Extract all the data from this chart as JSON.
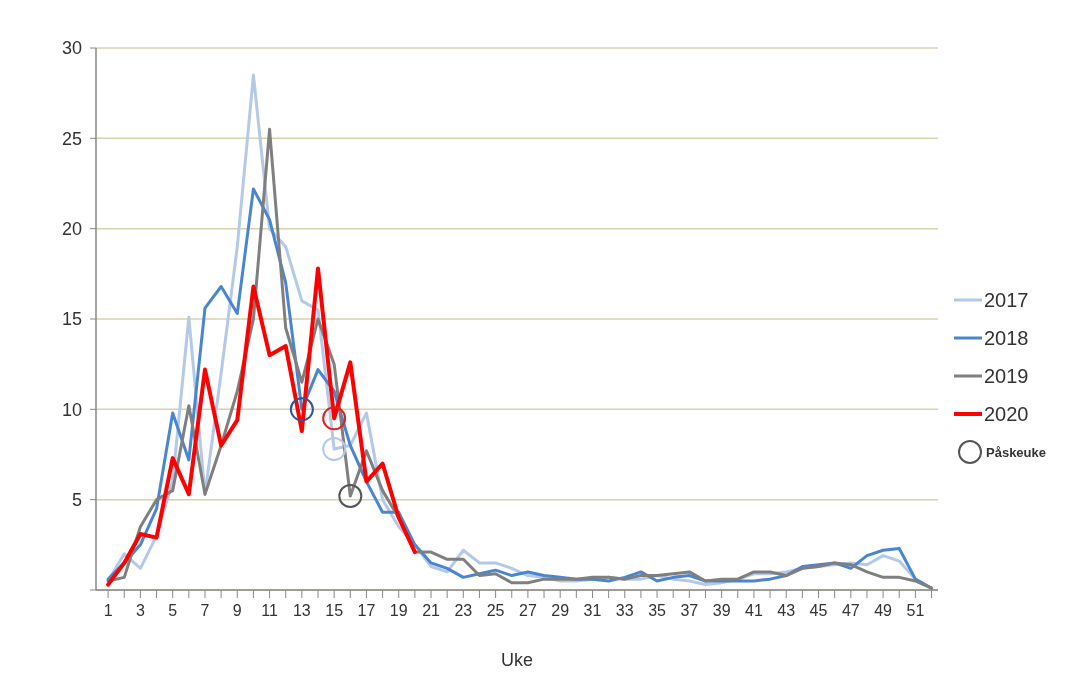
{
  "chart_data": {
    "type": "line",
    "xlabel": "Uke",
    "x": [
      1,
      2,
      3,
      4,
      5,
      6,
      7,
      8,
      9,
      10,
      11,
      12,
      13,
      14,
      15,
      16,
      17,
      18,
      19,
      20,
      21,
      22,
      23,
      24,
      25,
      26,
      27,
      28,
      29,
      30,
      31,
      32,
      33,
      34,
      35,
      36,
      37,
      38,
      39,
      40,
      41,
      42,
      43,
      44,
      45,
      46,
      47,
      48,
      49,
      50,
      51,
      52
    ],
    "xlim": [
      0.25,
      52.4
    ],
    "xticks": [
      1,
      {
        "value": 2,
        "label": null
      },
      3,
      {
        "value": 4,
        "label": null
      },
      5,
      {
        "value": 6,
        "label": null
      },
      7,
      {
        "value": 8,
        "label": null
      },
      9,
      {
        "value": 10,
        "label": null
      },
      11,
      {
        "value": 12,
        "label": null
      },
      13,
      {
        "value": 14,
        "label": null
      },
      15,
      {
        "value": 16,
        "label": null
      },
      17,
      {
        "value": 18,
        "label": null
      },
      19,
      {
        "value": 20,
        "label": null
      },
      21,
      {
        "value": 22,
        "label": null
      },
      23,
      {
        "value": 24,
        "label": null
      },
      25,
      {
        "value": 26,
        "label": null
      },
      27,
      {
        "value": 28,
        "label": null
      },
      29,
      {
        "value": 30,
        "label": null
      },
      31,
      {
        "value": 32,
        "label": null
      },
      33,
      {
        "value": 34,
        "label": null
      },
      35,
      {
        "value": 36,
        "label": null
      },
      37,
      {
        "value": 38,
        "label": null
      },
      39,
      {
        "value": 40,
        "label": null
      },
      41,
      {
        "value": 42,
        "label": null
      },
      43,
      {
        "value": 44,
        "label": null
      },
      45,
      {
        "value": 46,
        "label": null
      },
      47,
      {
        "value": 48,
        "label": null
      },
      49,
      {
        "value": 50,
        "label": null
      },
      51,
      {
        "value": 52,
        "label": null
      }
    ],
    "ylim": [
      0,
      30
    ],
    "yticks": [
      {
        "value": 0,
        "label": null
      },
      5,
      10,
      15,
      20,
      25,
      30
    ],
    "grid": "y",
    "legend": "right",
    "line_style": "solid",
    "marker": "none",
    "series": [
      {
        "name": "2017",
        "color": "#b4c9e8",
        "values": [
          0.5,
          2.0,
          1.2,
          3.0,
          6.0,
          15.1,
          5.3,
          12.0,
          19.0,
          28.5,
          20.0,
          19.0,
          16.0,
          15.5,
          7.8,
          8.0,
          9.8,
          5.0,
          3.5,
          2.5,
          1.3,
          1.0,
          2.2,
          1.5,
          1.5,
          1.2,
          0.8,
          0.7,
          0.5,
          0.5,
          0.6,
          0.7,
          0.6,
          0.6,
          0.8,
          0.6,
          0.5,
          0.3,
          0.4,
          0.6,
          0.9,
          0.9,
          1.0,
          1.2,
          1.3,
          1.4,
          1.5,
          1.4,
          1.9,
          1.6,
          0.6,
          0.1
        ]
      },
      {
        "name": "2018",
        "color": "#4a86d0",
        "values": [
          0.6,
          1.5,
          2.5,
          4.5,
          9.8,
          7.2,
          15.6,
          16.8,
          15.3,
          22.2,
          20.5,
          17.0,
          10.0,
          12.2,
          11.0,
          8.0,
          6.0,
          4.3,
          4.3,
          2.5,
          1.5,
          1.2,
          0.7,
          0.9,
          1.1,
          0.8,
          1.0,
          0.8,
          0.7,
          0.6,
          0.6,
          0.5,
          0.7,
          1.0,
          0.5,
          0.7,
          0.8,
          0.5,
          0.5,
          0.5,
          0.5,
          0.6,
          0.8,
          1.3,
          1.4,
          1.5,
          1.2,
          1.9,
          2.2,
          2.3,
          0.6,
          0.1
        ]
      },
      {
        "name": "2019",
        "color": "#7f7f7f",
        "values": [
          0.5,
          0.7,
          3.5,
          5.0,
          5.5,
          10.2,
          5.3,
          8.0,
          11.0,
          15.0,
          25.5,
          14.5,
          11.5,
          15.0,
          12.5,
          5.2,
          7.7,
          5.5,
          4.0,
          2.1,
          2.1,
          1.7,
          1.7,
          0.8,
          0.9,
          0.4,
          0.4,
          0.6,
          0.6,
          0.6,
          0.7,
          0.7,
          0.6,
          0.8,
          0.8,
          0.9,
          1.0,
          0.5,
          0.6,
          0.6,
          1.0,
          1.0,
          0.8,
          1.2,
          1.3,
          1.5,
          1.4,
          1.0,
          0.7,
          0.7,
          0.5,
          0.1
        ]
      },
      {
        "name": "2020",
        "color": "#ff0000",
        "values": [
          0.3,
          1.5,
          3.1,
          2.9,
          7.3,
          5.3,
          12.2,
          8.0,
          9.4,
          16.8,
          13.0,
          13.5,
          8.8,
          17.8,
          9.5,
          12.6,
          6.0,
          7.0,
          4.0,
          2.1,
          null,
          null,
          null,
          null,
          null,
          null,
          null,
          null,
          null,
          null,
          null,
          null,
          null,
          null,
          null,
          null,
          null,
          null,
          null,
          null,
          null,
          null,
          null,
          null,
          null,
          null,
          null,
          null,
          null,
          null,
          null,
          null
        ]
      },
      {
        "name": "Påskeuke",
        "type": "scatter",
        "marker": "circle",
        "color": "#555555",
        "x": [
          13,
          15,
          15,
          16
        ],
        "values": [
          10.0,
          7.8,
          9.5,
          5.2
        ],
        "colors": [
          "#2f5597",
          "#b4c9e8",
          "#e02020",
          "#555555"
        ]
      }
    ]
  }
}
